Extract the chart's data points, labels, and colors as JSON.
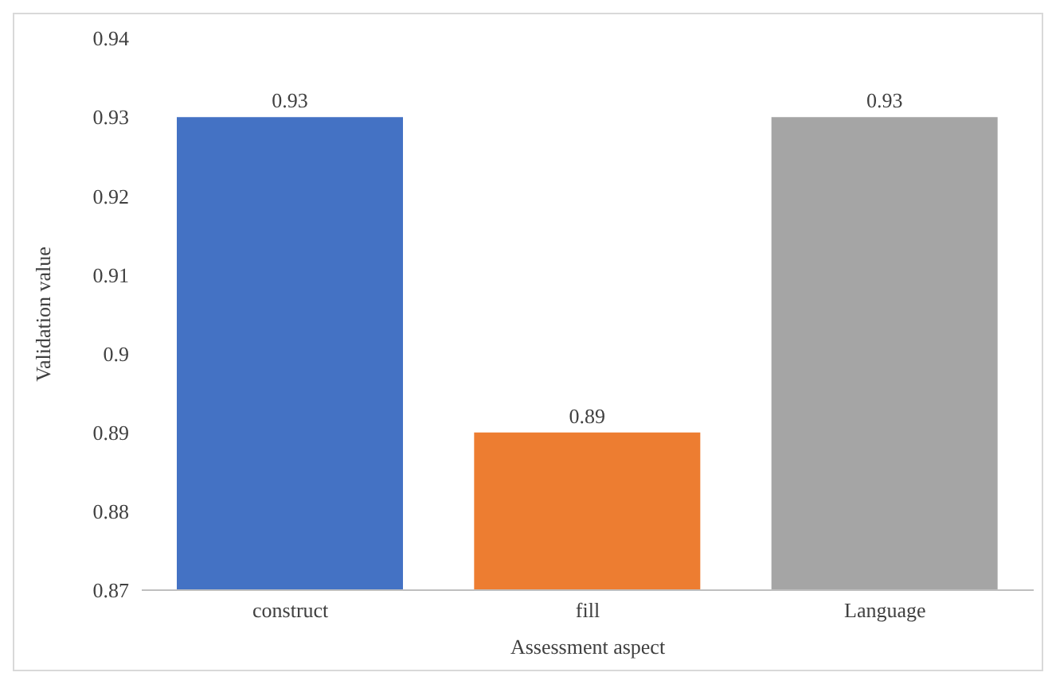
{
  "chart_data": {
    "type": "bar",
    "xlabel": "Assessment aspect",
    "ylabel": "Validation value",
    "categories": [
      "construct",
      "fill",
      "Language"
    ],
    "values": [
      0.93,
      0.89,
      0.93
    ],
    "colors": [
      "#4472c4",
      "#ed7d31",
      "#a5a5a5"
    ],
    "ylim": [
      0.87,
      0.94
    ],
    "yticks": [
      0.87,
      0.88,
      0.89,
      0.9,
      0.91,
      0.92,
      0.93,
      0.94
    ],
    "data_labels": true
  }
}
